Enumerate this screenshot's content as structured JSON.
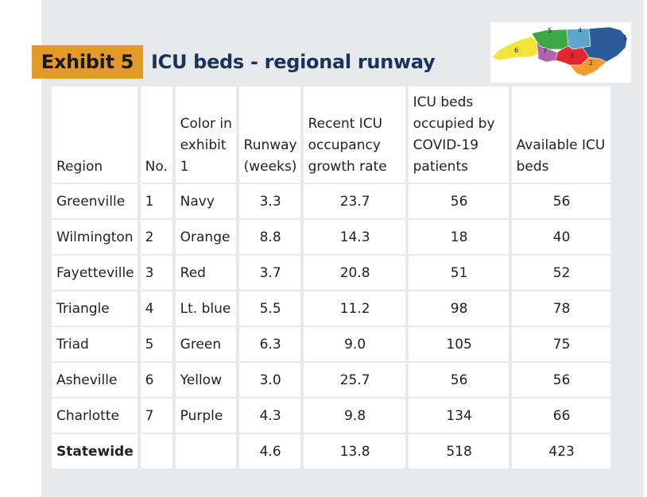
{
  "exhibit": {
    "label": "Exhibit 5",
    "title": "ICU beds - regional runway"
  },
  "map": {
    "region_numbers": [
      "1",
      "2",
      "3",
      "4",
      "5",
      "6",
      "7"
    ],
    "colors": {
      "navy": "#2c5b9a",
      "orange": "#f29a2e",
      "red": "#e32631",
      "light_blue": "#5fa6cf",
      "green": "#3aa845",
      "yellow": "#f2e43a",
      "purple": "#b261b3"
    }
  },
  "table": {
    "headers": {
      "region": "Region",
      "no": "No.",
      "color": "Color in exhibit 1",
      "runway": "Runway (weeks)",
      "growth": "Recent ICU occupancy growth rate",
      "occupied": "ICU beds occupied by COVID-19 patients",
      "available": "Available ICU beds"
    },
    "rows": [
      {
        "region": "Greenville",
        "no": "1",
        "color": "Navy",
        "runway": "3.3",
        "growth": "23.7",
        "occupied": "56",
        "available": "56"
      },
      {
        "region": "Wilmington",
        "no": "2",
        "color": "Orange",
        "runway": "8.8",
        "growth": "14.3",
        "occupied": "18",
        "available": "40"
      },
      {
        "region": "Fayetteville",
        "no": "3",
        "color": "Red",
        "runway": "3.7",
        "growth": "20.8",
        "occupied": "51",
        "available": "52"
      },
      {
        "region": "Triangle",
        "no": "4",
        "color": "Lt. blue",
        "runway": "5.5",
        "growth": "11.2",
        "occupied": "98",
        "available": "78"
      },
      {
        "region": "Triad",
        "no": "5",
        "color": "Green",
        "runway": "6.3",
        "growth": "9.0",
        "occupied": "105",
        "available": "75"
      },
      {
        "region": "Asheville",
        "no": "6",
        "color": "Yellow",
        "runway": "3.0",
        "growth": "25.7",
        "occupied": "56",
        "available": "56"
      },
      {
        "region": "Charlotte",
        "no": "7",
        "color": "Purple",
        "runway": "4.3",
        "growth": "9.8",
        "occupied": "134",
        "available": "66"
      }
    ],
    "total": {
      "region": "Statewide",
      "runway": "4.6",
      "growth": "13.8",
      "occupied": "518",
      "available": "423"
    }
  }
}
